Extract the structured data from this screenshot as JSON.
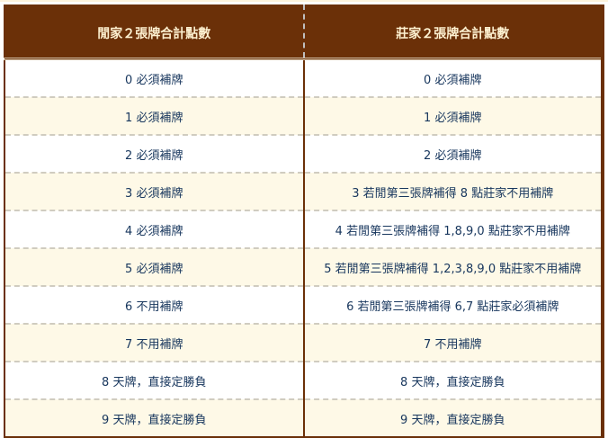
{
  "table": {
    "headers": [
      "閒家２張牌合計點數",
      "莊家２張牌合計點數"
    ],
    "rows": [
      [
        "0 必須補牌",
        "0 必須補牌"
      ],
      [
        "1 必須補牌",
        "1 必須補牌"
      ],
      [
        "2 必須補牌",
        "2 必須補牌"
      ],
      [
        "3 必須補牌",
        "3 若閒第三張牌補得 8 點莊家不用補牌"
      ],
      [
        "4 必須補牌",
        "4 若閒第三張牌補得 1,8,9,0 點莊家不用補牌"
      ],
      [
        "5 必須補牌",
        "5 若閒第三張牌補得 1,2,3,8,9,0 點莊家不用補牌"
      ],
      [
        "6 不用補牌",
        "6 若閒第三張牌補得 6,7 點莊家必須補牌"
      ],
      [
        "7 不用補牌",
        "7 不用補牌"
      ],
      [
        "8 天牌，直接定勝負",
        "8 天牌，直接定勝負"
      ],
      [
        "9 天牌，直接定勝負",
        "9 天牌，直接定勝負"
      ]
    ]
  },
  "colors": {
    "header_bg": "#6b3008",
    "header_text": "#fdf0d0",
    "cell_text": "#17365d",
    "alt_row": "#fef9e7"
  }
}
